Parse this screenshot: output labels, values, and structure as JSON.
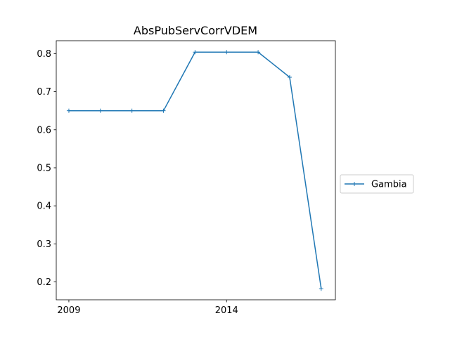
{
  "chart_data": {
    "type": "line",
    "title": "AbsPubServCorrVDEM",
    "xlabel": "",
    "ylabel": "",
    "x_ticks": [
      2009,
      2014
    ],
    "y_ticks": [
      0.2,
      0.3,
      0.4,
      0.5,
      0.6,
      0.7,
      0.8
    ],
    "xlim": [
      2008.6,
      2017.45
    ],
    "ylim": [
      0.153,
      0.834
    ],
    "grid": false,
    "legend_position": "right",
    "series": [
      {
        "name": "Gambia",
        "color": "#1f77b4",
        "marker": "plus",
        "x": [
          2009,
          2010,
          2011,
          2012,
          2013,
          2014,
          2015,
          2016,
          2017
        ],
        "y": [
          0.65,
          0.65,
          0.65,
          0.65,
          0.804,
          0.804,
          0.804,
          0.738,
          0.182
        ]
      }
    ]
  }
}
